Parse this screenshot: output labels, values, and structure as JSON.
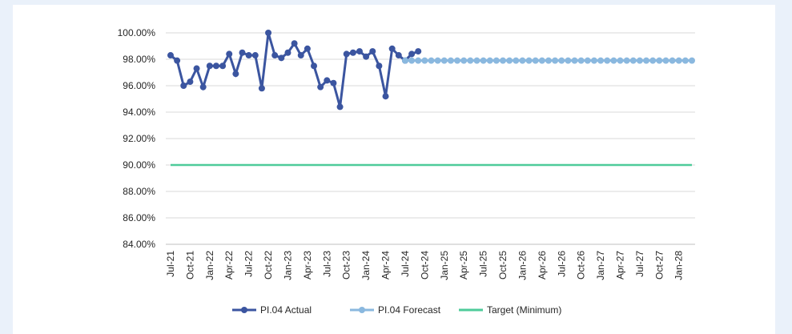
{
  "chart_data": {
    "type": "line",
    "categories": [
      "Jul-21",
      null,
      null,
      "Oct-21",
      null,
      null,
      "Jan-22",
      null,
      null,
      "Apr-22",
      null,
      null,
      "Jul-22",
      null,
      null,
      "Oct-22",
      null,
      null,
      "Jan-23",
      null,
      null,
      "Apr-23",
      null,
      null,
      "Jul-23",
      null,
      null,
      "Oct-23",
      null,
      null,
      "Jan-24",
      null,
      null,
      "Apr-24",
      null,
      null,
      "Jul-24",
      null,
      null,
      "Oct-24",
      null,
      null,
      "Jan-25",
      null,
      null,
      "Apr-25",
      null,
      null,
      "Jul-25",
      null,
      null,
      "Oct-25",
      null,
      null,
      "Jan-26",
      null,
      null,
      "Apr-26",
      null,
      null,
      "Jul-26",
      null,
      null,
      "Oct-26",
      null,
      null,
      "Jan-27",
      null,
      null,
      "Apr-27",
      null,
      null,
      "Jul-27",
      null,
      null,
      "Oct-27",
      null,
      null,
      "Jan-28",
      null,
      null
    ],
    "series": [
      {
        "name": "PI.04 Actual",
        "color": "#3b55a0",
        "markers": true,
        "values": [
          98.3,
          97.9,
          96.0,
          96.3,
          97.3,
          95.9,
          97.5,
          97.5,
          97.5,
          98.4,
          96.9,
          98.5,
          98.3,
          98.3,
          95.8,
          100.0,
          98.3,
          98.1,
          98.5,
          99.2,
          98.3,
          98.8,
          97.5,
          95.9,
          96.4,
          96.2,
          94.4,
          98.4,
          98.5,
          98.6,
          98.2,
          98.6,
          97.5,
          95.2,
          98.8,
          98.3,
          97.9,
          98.4,
          98.6,
          null,
          null,
          null,
          null,
          null,
          null,
          null,
          null,
          null,
          null,
          null,
          null,
          null,
          null,
          null,
          null,
          null,
          null,
          null,
          null,
          null,
          null,
          null,
          null,
          null,
          null,
          null,
          null,
          null,
          null,
          null,
          null,
          null,
          null,
          null,
          null,
          null,
          null,
          null,
          null,
          null,
          null
        ]
      },
      {
        "name": "PI.04 Forecast",
        "color": "#8ab8df",
        "markers": true,
        "values": [
          null,
          null,
          null,
          null,
          null,
          null,
          null,
          null,
          null,
          null,
          null,
          null,
          null,
          null,
          null,
          null,
          null,
          null,
          null,
          null,
          null,
          null,
          null,
          null,
          null,
          null,
          null,
          null,
          null,
          null,
          null,
          null,
          null,
          null,
          null,
          null,
          97.9,
          97.9,
          97.9,
          97.9,
          97.9,
          97.9,
          97.9,
          97.9,
          97.9,
          97.9,
          97.9,
          97.9,
          97.9,
          97.9,
          97.9,
          97.9,
          97.9,
          97.9,
          97.9,
          97.9,
          97.9,
          97.9,
          97.9,
          97.9,
          97.9,
          97.9,
          97.9,
          97.9,
          97.9,
          97.9,
          97.9,
          97.9,
          97.9,
          97.9,
          97.9,
          97.9,
          97.9,
          97.9,
          97.9,
          97.9,
          97.9,
          97.9,
          97.9,
          97.9,
          97.9
        ]
      },
      {
        "name": "Target (Minimum)",
        "color": "#4ecb9a",
        "markers": false,
        "values": [
          90,
          90,
          90,
          90,
          90,
          90,
          90,
          90,
          90,
          90,
          90,
          90,
          90,
          90,
          90,
          90,
          90,
          90,
          90,
          90,
          90,
          90,
          90,
          90,
          90,
          90,
          90,
          90,
          90,
          90,
          90,
          90,
          90,
          90,
          90,
          90,
          90,
          90,
          90,
          90,
          90,
          90,
          90,
          90,
          90,
          90,
          90,
          90,
          90,
          90,
          90,
          90,
          90,
          90,
          90,
          90,
          90,
          90,
          90,
          90,
          90,
          90,
          90,
          90,
          90,
          90,
          90,
          90,
          90,
          90,
          90,
          90,
          90,
          90,
          90,
          90,
          90,
          90,
          90,
          90,
          90
        ]
      }
    ],
    "ylim": [
      84,
      100
    ],
    "yticks": [
      {
        "value": 84,
        "label": "84.00%"
      },
      {
        "value": 86,
        "label": "86.00%"
      },
      {
        "value": 88,
        "label": "88.00%"
      },
      {
        "value": 90,
        "label": "90.00%"
      },
      {
        "value": 92,
        "label": "92.00%"
      },
      {
        "value": 94,
        "label": "94.00%"
      },
      {
        "value": 96,
        "label": "96.00%"
      },
      {
        "value": 98,
        "label": "98.00%"
      },
      {
        "value": 100,
        "label": "100.00%"
      }
    ],
    "grid": true,
    "legend": "bottom"
  }
}
